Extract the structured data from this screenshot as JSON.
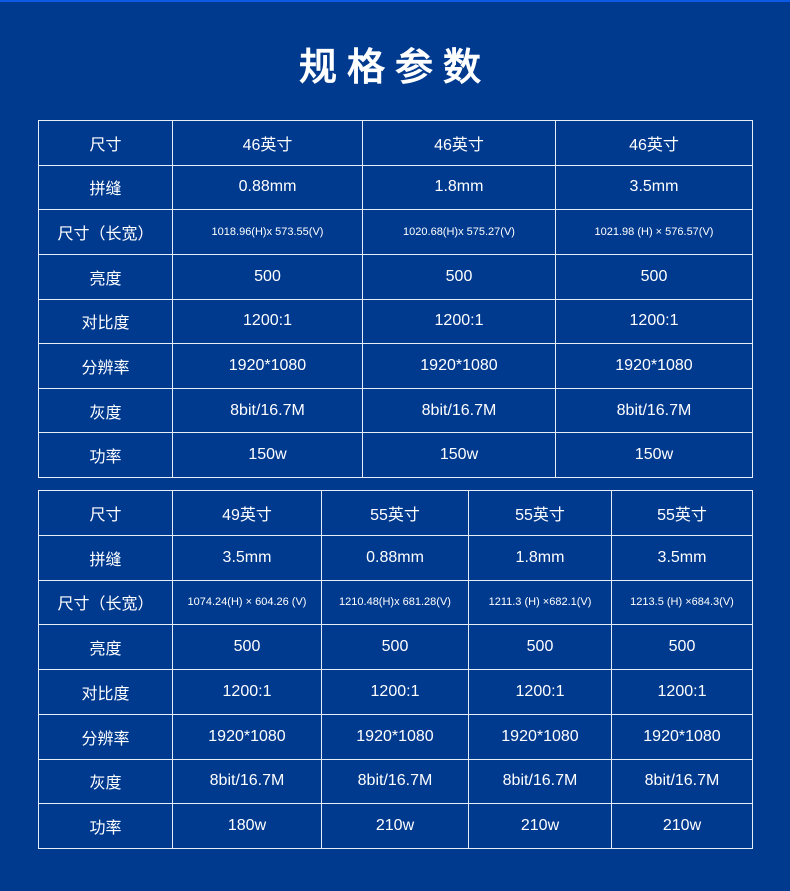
{
  "title": "规格参数",
  "colors": {
    "background": "#003a8f",
    "border": "#e8eef8",
    "text": "#ffffff"
  },
  "table1": {
    "rows": [
      {
        "label": "尺寸",
        "values": [
          "46英寸",
          "46英寸",
          "46英寸"
        ]
      },
      {
        "label": "拼缝",
        "values": [
          "0.88mm",
          "1.8mm",
          "3.5mm"
        ]
      },
      {
        "label": "尺寸（长宽）",
        "values": [
          "1018.96(H)x 573.55(V)",
          "1020.68(H)x 575.27(V)",
          "1021.98 (H) × 576.57(V)"
        ]
      },
      {
        "label": "亮度",
        "values": [
          "500",
          "500",
          "500"
        ]
      },
      {
        "label": "对比度",
        "values": [
          "1200:1",
          "1200:1",
          "1200:1"
        ]
      },
      {
        "label": "分辨率",
        "values": [
          "1920*1080",
          "1920*1080",
          "1920*1080"
        ]
      },
      {
        "label": "灰度",
        "values": [
          "8bit/16.7M",
          "8bit/16.7M",
          "8bit/16.7M"
        ]
      },
      {
        "label": "功率",
        "values": [
          "150w",
          "150w",
          "150w"
        ]
      }
    ]
  },
  "table2": {
    "rows": [
      {
        "label": "尺寸",
        "values": [
          "49英寸",
          "55英寸",
          "55英寸",
          "55英寸"
        ]
      },
      {
        "label": "拼缝",
        "values": [
          "3.5mm",
          "0.88mm",
          "1.8mm",
          "3.5mm"
        ]
      },
      {
        "label": "尺寸（长宽）",
        "values": [
          "1074.24(H) × 604.26 (V)",
          "1210.48(H)x 681.28(V)",
          "1211.3 (H) ×682.1(V)",
          "1213.5 (H) ×684.3(V)"
        ]
      },
      {
        "label": "亮度",
        "values": [
          "500",
          "500",
          "500",
          "500"
        ]
      },
      {
        "label": "对比度",
        "values": [
          "1200:1",
          "1200:1",
          "1200:1",
          "1200:1"
        ]
      },
      {
        "label": "分辨率",
        "values": [
          "1920*1080",
          "1920*1080",
          "1920*1080",
          "1920*1080"
        ]
      },
      {
        "label": "灰度",
        "values": [
          "8bit/16.7M",
          "8bit/16.7M",
          "8bit/16.7M",
          "8bit/16.7M"
        ]
      },
      {
        "label": "功率",
        "values": [
          "180w",
          "210w",
          "210w",
          "210w"
        ]
      }
    ]
  }
}
